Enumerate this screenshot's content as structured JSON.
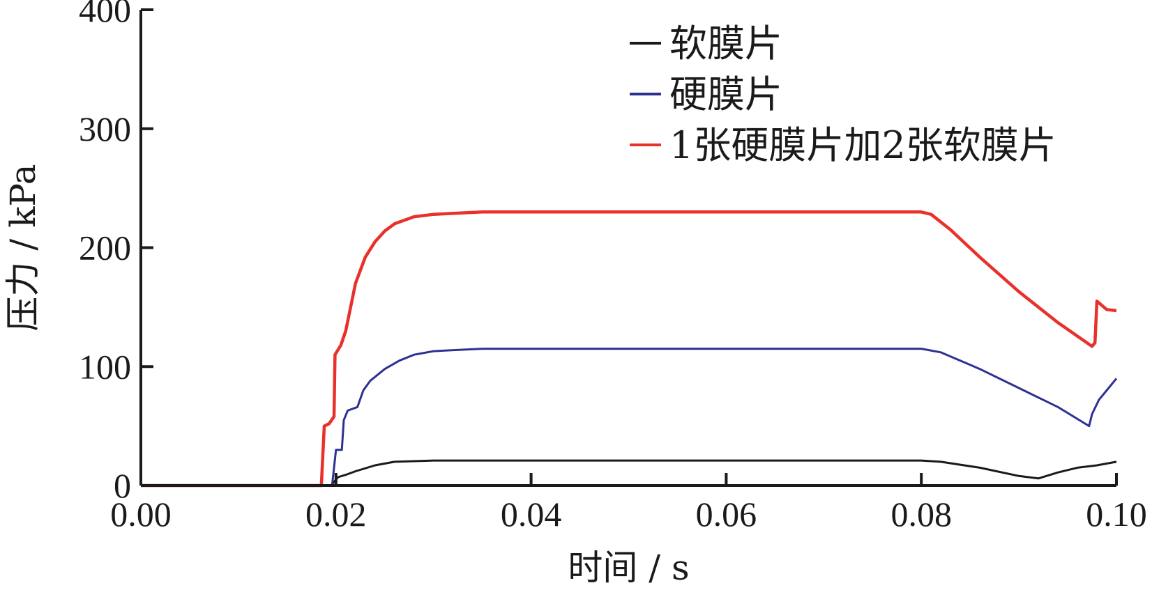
{
  "chart_data": {
    "type": "line",
    "xlabel": "时间 / s",
    "ylabel": "压力 / kPa",
    "xlim": [
      0.0,
      0.1
    ],
    "ylim": [
      0,
      400
    ],
    "x_ticks": [
      "0.00",
      "0.02",
      "0.04",
      "0.06",
      "0.08",
      "0.10"
    ],
    "y_ticks": [
      "0",
      "100",
      "200",
      "300",
      "400"
    ],
    "grid": false,
    "legend_position": "top-right",
    "series": [
      {
        "name": "软膜片",
        "color": "#1a1a1a",
        "x": [
          0.0,
          0.018,
          0.0195,
          0.0202,
          0.021,
          0.022,
          0.024,
          0.026,
          0.03,
          0.04,
          0.05,
          0.06,
          0.07,
          0.08,
          0.082,
          0.086,
          0.09,
          0.092,
          0.094,
          0.096,
          0.098,
          0.1
        ],
        "y": [
          0,
          0,
          0,
          7,
          9,
          12,
          17,
          20,
          21,
          21,
          21,
          21,
          21,
          21,
          20,
          15,
          8,
          6,
          11,
          15,
          17,
          20
        ]
      },
      {
        "name": "硬膜片",
        "color": "#2e3192",
        "x": [
          0.0,
          0.0188,
          0.0196,
          0.02,
          0.0206,
          0.0208,
          0.0212,
          0.0222,
          0.0228,
          0.0235,
          0.025,
          0.0265,
          0.028,
          0.03,
          0.035,
          0.04,
          0.05,
          0.06,
          0.07,
          0.08,
          0.082,
          0.086,
          0.09,
          0.094,
          0.0972,
          0.0975,
          0.0982,
          0.0992,
          0.1
        ],
        "y": [
          0,
          0,
          0,
          30,
          30,
          55,
          63,
          66,
          80,
          88,
          98,
          105,
          110,
          113,
          115,
          115,
          115,
          115,
          115,
          115,
          112,
          98,
          82,
          66,
          50,
          60,
          72,
          82,
          90
        ]
      },
      {
        "name": "1张硬膜片加2张软膜片",
        "color": "#e8312a",
        "x": [
          0.0,
          0.0185,
          0.0188,
          0.0193,
          0.0198,
          0.0199,
          0.0205,
          0.021,
          0.0215,
          0.022,
          0.023,
          0.024,
          0.025,
          0.026,
          0.028,
          0.03,
          0.035,
          0.04,
          0.05,
          0.06,
          0.07,
          0.08,
          0.081,
          0.083,
          0.086,
          0.09,
          0.094,
          0.0975,
          0.0978,
          0.098,
          0.099,
          0.1
        ],
        "y": [
          0,
          0,
          50,
          52,
          58,
          110,
          118,
          130,
          150,
          170,
          192,
          205,
          214,
          220,
          226,
          228,
          230,
          230,
          230,
          230,
          230,
          230,
          228,
          215,
          192,
          163,
          137,
          117,
          120,
          155,
          148,
          147
        ]
      }
    ]
  }
}
